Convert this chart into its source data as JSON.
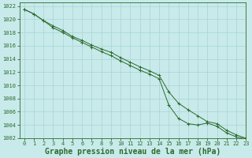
{
  "title": "Graphe pression niveau de la mer (hPa)",
  "background_color": "#c8eaea",
  "grid_color": "#a8d4d4",
  "line_color": "#2d6a2d",
  "xlim": [
    -0.5,
    23
  ],
  "ylim": [
    1002,
    1022.5
  ],
  "yticks": [
    1002,
    1004,
    1006,
    1008,
    1010,
    1012,
    1014,
    1016,
    1018,
    1020,
    1022
  ],
  "xticks": [
    0,
    1,
    2,
    3,
    4,
    5,
    6,
    7,
    8,
    9,
    10,
    11,
    12,
    13,
    14,
    15,
    16,
    17,
    18,
    19,
    20,
    21,
    22,
    23
  ],
  "series1_x": [
    0,
    1,
    2,
    3,
    4,
    5,
    6,
    7,
    8,
    9,
    10,
    11,
    12,
    13,
    14,
    15,
    16,
    17,
    18,
    19,
    20,
    21,
    22,
    23
  ],
  "series1_y": [
    1021.5,
    1020.8,
    1019.8,
    1019.0,
    1018.3,
    1017.4,
    1016.8,
    1016.1,
    1015.5,
    1015.0,
    1014.2,
    1013.5,
    1012.8,
    1012.2,
    1011.5,
    1009.0,
    1007.3,
    1006.3,
    1005.4,
    1004.5,
    1004.2,
    1003.2,
    1002.5,
    1002.0
  ],
  "series2_x": [
    0,
    1,
    2,
    3,
    4,
    5,
    6,
    7,
    8,
    9,
    10,
    11,
    12,
    13,
    14,
    15,
    16,
    17,
    18,
    19,
    20,
    21,
    22,
    23
  ],
  "series2_y": [
    1021.5,
    1020.8,
    1019.8,
    1018.7,
    1018.0,
    1017.2,
    1016.5,
    1015.8,
    1015.1,
    1014.5,
    1013.7,
    1013.0,
    1012.3,
    1011.7,
    1011.0,
    1007.0,
    1005.0,
    1004.2,
    1004.0,
    1004.3,
    1003.8,
    1002.8,
    1002.2,
    1001.9
  ],
  "title_fontsize": 7,
  "tick_fontsize": 5,
  "figsize": [
    3.2,
    2.0
  ],
  "dpi": 100
}
